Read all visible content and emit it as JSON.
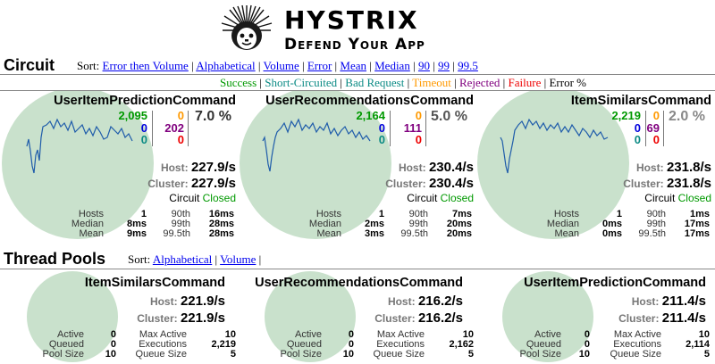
{
  "header": {
    "title": "Hystrix",
    "subtitle": "Defend Your App",
    "logo_icon": "hystrix-porcupine-logo"
  },
  "circuit": {
    "title": "Circuit",
    "sort_label": "Sort:",
    "sort_options": [
      "Error then Volume",
      "Alphabetical",
      "Volume",
      "Error",
      "Mean",
      "Median",
      "90",
      "99",
      "99.5"
    ],
    "legend": [
      {
        "label": "Success",
        "color": "#009900"
      },
      {
        "label": "Short-Circuited",
        "color": "#0a8a84"
      },
      {
        "label": "Bad Request",
        "color": "#0a8a84"
      },
      {
        "label": "Timeout",
        "color": "#ff9900"
      },
      {
        "label": "Rejected",
        "color": "#80007f"
      },
      {
        "label": "Failure",
        "color": "#ee0000"
      },
      {
        "label": "Error %",
        "color": "#000000"
      }
    ],
    "commands": [
      {
        "name": "UserItemPredictionCommand",
        "success": "2,095",
        "short_circuited": "0",
        "bad_request": "0",
        "timeout": "0",
        "rejected": "202",
        "failure": "0",
        "error_pct": "7.0 %",
        "host_label": "Host:",
        "host_rate": "227.9/s",
        "cluster_label": "Cluster:",
        "cluster_rate": "227.9/s",
        "circuit_label": "Circuit",
        "circuit_status": "Closed",
        "stats": {
          "hosts_label": "Hosts",
          "hosts": "1",
          "p90_label": "90th",
          "p90": "16ms",
          "median_label": "Median",
          "median": "8ms",
          "p99_label": "99th",
          "p99": "28ms",
          "mean_label": "Mean",
          "mean": "9ms",
          "p995_label": "99.5th",
          "p995": "28ms"
        }
      },
      {
        "name": "UserRecommendationsCommand",
        "success": "2,164",
        "short_circuited": "0",
        "bad_request": "0",
        "timeout": "0",
        "rejected": "111",
        "failure": "0",
        "error_pct": "5.0 %",
        "host_label": "Host:",
        "host_rate": "230.4/s",
        "cluster_label": "Cluster:",
        "cluster_rate": "230.4/s",
        "circuit_label": "Circuit",
        "circuit_status": "Closed",
        "stats": {
          "hosts_label": "Hosts",
          "hosts": "1",
          "p90_label": "90th",
          "p90": "7ms",
          "median_label": "Median",
          "median": "2ms",
          "p99_label": "99th",
          "p99": "20ms",
          "mean_label": "Mean",
          "mean": "3ms",
          "p995_label": "99.5th",
          "p995": "20ms"
        }
      },
      {
        "name": "ItemSimilarsCommand",
        "success": "2,219",
        "short_circuited": "0",
        "bad_request": "0",
        "timeout": "0",
        "rejected": "69",
        "failure": "0",
        "error_pct": "2.0 %",
        "host_label": "Host:",
        "host_rate": "231.8/s",
        "cluster_label": "Cluster:",
        "cluster_rate": "231.8/s",
        "circuit_label": "Circuit",
        "circuit_status": "Closed",
        "stats": {
          "hosts_label": "Hosts",
          "hosts": "1",
          "p90_label": "90th",
          "p90": "1ms",
          "median_label": "Median",
          "median": "0ms",
          "p99_label": "99th",
          "p99": "17ms",
          "mean_label": "Mean",
          "mean": "0ms",
          "p995_label": "99.5th",
          "p995": "17ms"
        }
      }
    ]
  },
  "thread_pools": {
    "title": "Thread Pools",
    "sort_label": "Sort:",
    "sort_options": [
      "Alphabetical",
      "Volume"
    ],
    "pools": [
      {
        "name": "ItemSimilarsCommand",
        "host_label": "Host:",
        "host_rate": "221.9/s",
        "cluster_label": "Cluster:",
        "cluster_rate": "221.9/s",
        "active_label": "Active",
        "active": "0",
        "queued_label": "Queued",
        "queued": "0",
        "pool_size_label": "Pool Size",
        "pool_size": "10",
        "max_active_label": "Max Active",
        "max_active": "10",
        "executions_label": "Executions",
        "executions": "2,219",
        "queue_size_label": "Queue Size",
        "queue_size": "5"
      },
      {
        "name": "UserRecommendationsCommand",
        "host_label": "Host:",
        "host_rate": "216.2/s",
        "cluster_label": "Cluster:",
        "cluster_rate": "216.2/s",
        "active_label": "Active",
        "active": "0",
        "queued_label": "Queued",
        "queued": "0",
        "pool_size_label": "Pool Size",
        "pool_size": "10",
        "max_active_label": "Max Active",
        "max_active": "10",
        "executions_label": "Executions",
        "executions": "2,162",
        "queue_size_label": "Queue Size",
        "queue_size": "5"
      },
      {
        "name": "UserItemPredictionCommand",
        "host_label": "Host:",
        "host_rate": "211.4/s",
        "cluster_label": "Cluster:",
        "cluster_rate": "211.4/s",
        "active_label": "Active",
        "active": "0",
        "queued_label": "Queued",
        "queued": "0",
        "pool_size_label": "Pool Size",
        "pool_size": "10",
        "max_active_label": "Max Active",
        "max_active": "10",
        "executions_label": "Executions",
        "executions": "2,114",
        "queue_size_label": "Queue Size",
        "queue_size": "5"
      }
    ]
  }
}
